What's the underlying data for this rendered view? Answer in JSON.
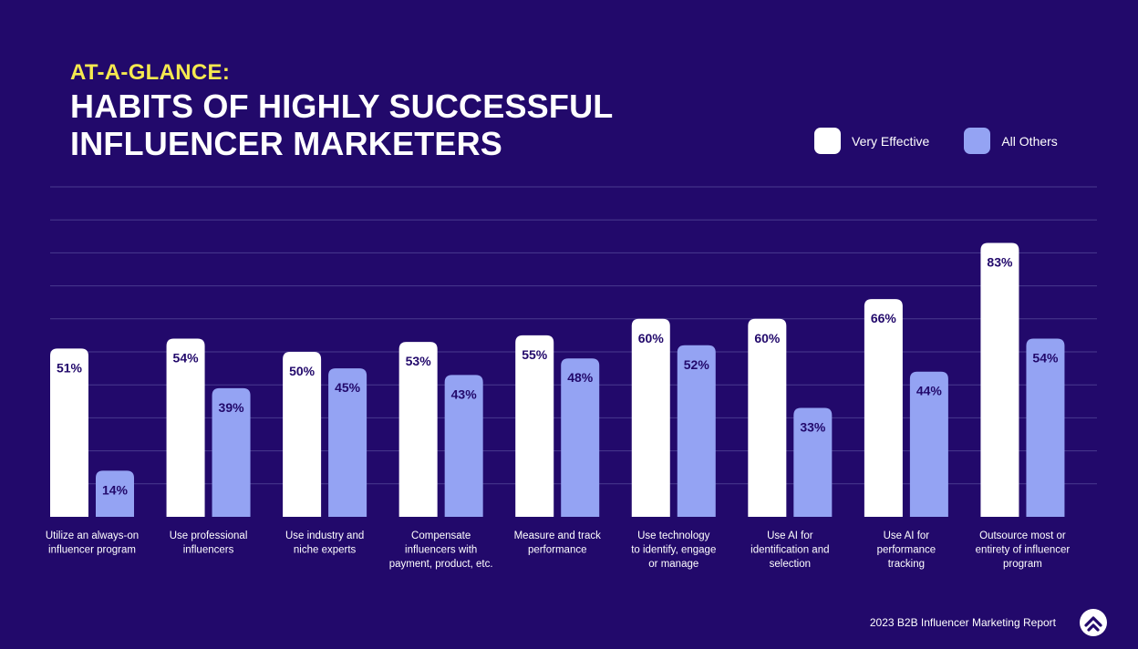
{
  "header": {
    "eyebrow": "AT-A-GLANCE:",
    "title_line1": "HABITS OF HIGHLY SUCCESSFUL",
    "title_line2": "INFLUENCER MARKETERS"
  },
  "footer": {
    "source": "2023 B2B Influencer Marketing Report",
    "logo_icon": "chevron-up-logo-icon"
  },
  "colors": {
    "background": "#22096b",
    "very_effective": "#ffffff",
    "all_others": "#94a3f3",
    "gridline": "#4a3b8f",
    "value_text": "#22096b"
  },
  "chart_data": {
    "type": "bar",
    "categories": [
      [
        "Utilize an always-on",
        "influencer program"
      ],
      [
        "Use professional",
        "influencers"
      ],
      [
        "Use industry and",
        "niche experts"
      ],
      [
        "Compensate",
        "influencers with",
        "payment, product, etc."
      ],
      [
        "Measure and track",
        "performance"
      ],
      [
        "Use technology",
        "to identify, engage",
        "or manage"
      ],
      [
        "Use AI for",
        "identification and",
        "selection"
      ],
      [
        "Use AI for",
        "performance",
        "tracking"
      ],
      [
        "Outsource most or",
        "entirety of influencer",
        "program"
      ]
    ],
    "series": [
      {
        "name": "Very Effective",
        "values": [
          51,
          54,
          50,
          53,
          55,
          60,
          60,
          66,
          83
        ],
        "labels": [
          "51%",
          "54%",
          "50%",
          "53%",
          "55%",
          "60%",
          "60%",
          "66%",
          "83%"
        ]
      },
      {
        "name": "All Others",
        "values": [
          14,
          39,
          45,
          43,
          48,
          52,
          33,
          44,
          54
        ],
        "labels": [
          "14%",
          "39%",
          "45%",
          "43%",
          "48%",
          "52%",
          "33%",
          "44%",
          "54%"
        ]
      }
    ],
    "ylim": [
      0,
      100
    ],
    "grid": true,
    "legend": "top-right"
  }
}
